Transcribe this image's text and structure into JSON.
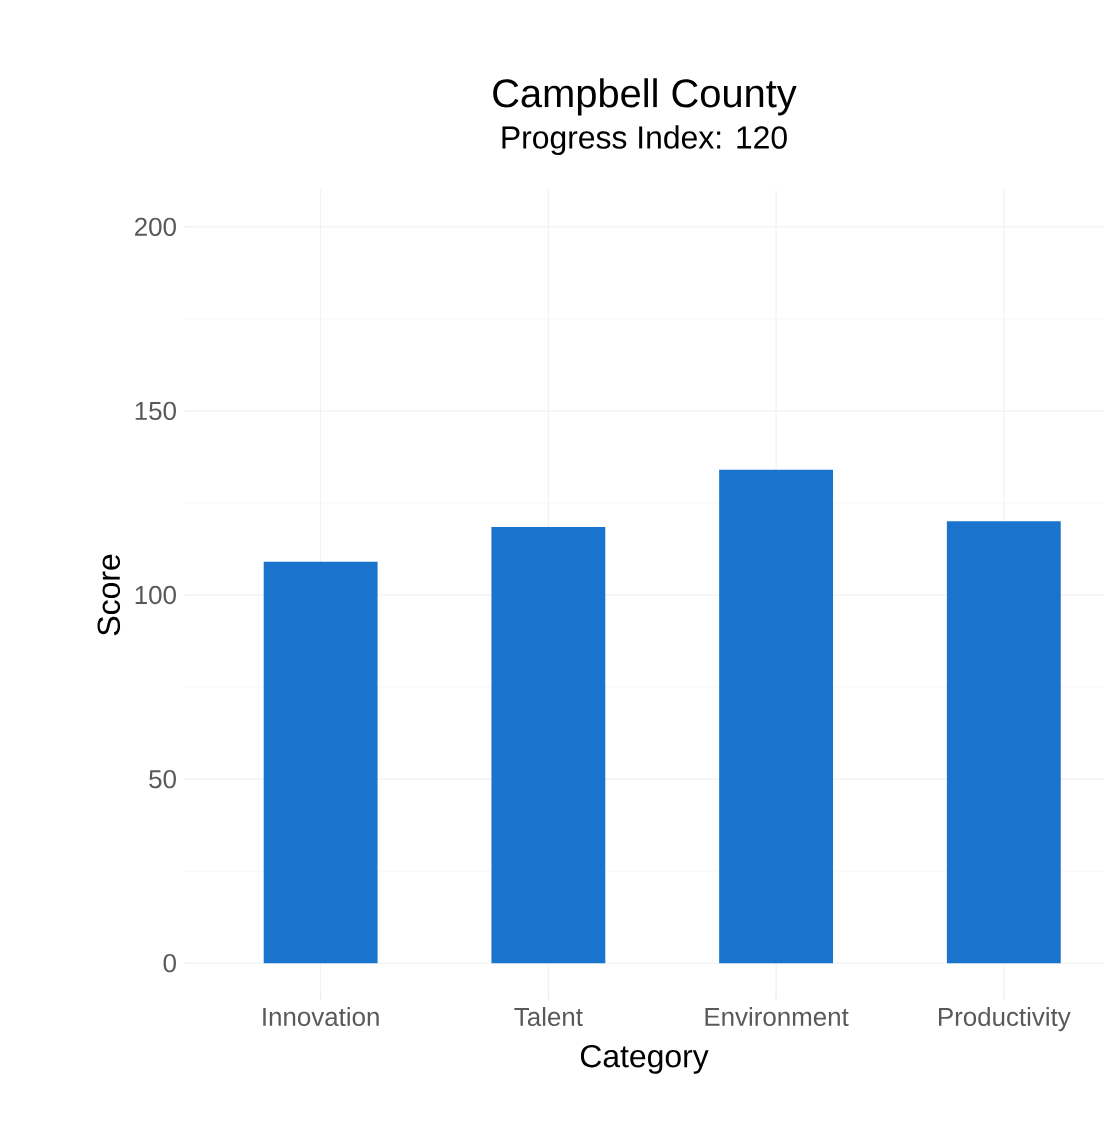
{
  "chart_data": {
    "type": "bar",
    "title": "Campbell  County",
    "subtitle": "Progress Index: 120",
    "xlabel": "Category",
    "ylabel": "Score",
    "categories": [
      "Innovation",
      "Talent",
      "Environment",
      "Productivity"
    ],
    "values": [
      109,
      118.5,
      134,
      120
    ],
    "color": "#1a73cc",
    "ylim": [
      0,
      200
    ],
    "yticks": [
      0,
      50,
      100,
      150,
      200
    ],
    "grid": true
  }
}
